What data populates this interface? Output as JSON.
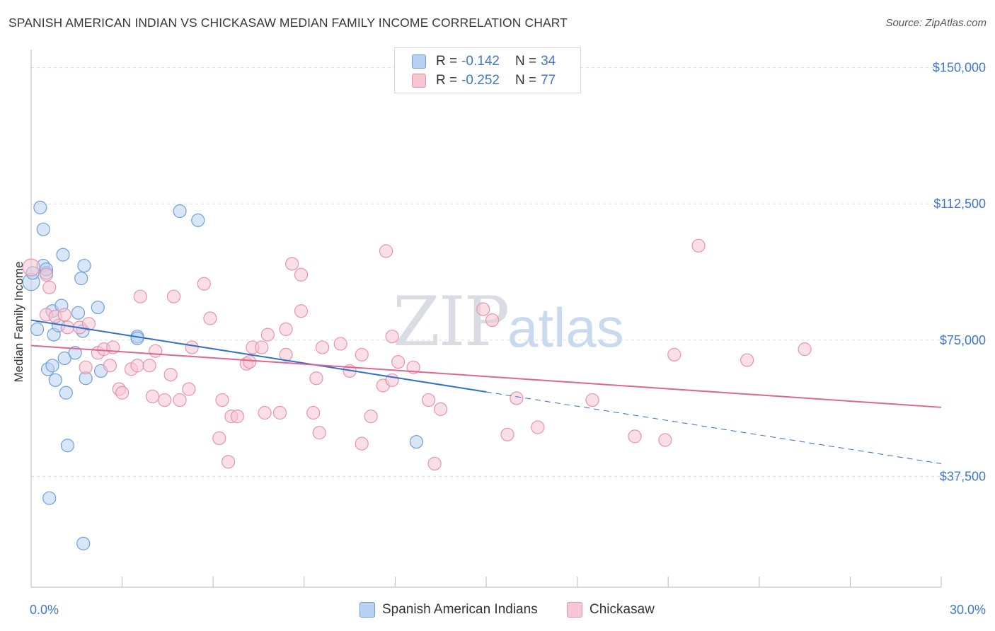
{
  "title": "SPANISH AMERICAN INDIAN VS CHICKASAW MEDIAN FAMILY INCOME CORRELATION CHART",
  "source": "Source: ZipAtlas.com",
  "watermark": {
    "zip": "ZIP",
    "atlas": "atlas"
  },
  "legend": {
    "series": [
      {
        "r_label": "R =",
        "r_value": "-0.142",
        "n_label": "N =",
        "n_value": "34"
      },
      {
        "r_label": "R =",
        "r_value": "-0.252",
        "n_label": "N =",
        "n_value": "77"
      }
    ]
  },
  "chart_data": {
    "type": "scatter",
    "title": "SPANISH AMERICAN INDIAN VS CHICKASAW MEDIAN FAMILY INCOME CORRELATION CHART",
    "xlabel": "",
    "ylabel": "Median Family Income",
    "xlim": [
      0,
      30
    ],
    "ylim": [
      7000,
      155000
    ],
    "x_tick_labels": [
      {
        "value": 0,
        "label": "0.0%"
      },
      {
        "value": 30,
        "label": "30.0%"
      }
    ],
    "x_minor_ticks": [
      0,
      3,
      6,
      9,
      12,
      15,
      18,
      21,
      24,
      27,
      30
    ],
    "y_ticks": [
      {
        "value": 150000,
        "label": "$150,000"
      },
      {
        "value": 112500,
        "label": "$112,500"
      },
      {
        "value": 75000,
        "label": "$75,000"
      },
      {
        "value": 37500,
        "label": "$37,500"
      }
    ],
    "grid": true,
    "series": [
      {
        "name": "Spanish American Indians",
        "fill": "#b8d1f3",
        "stroke": "#6f9fd8",
        "trend": {
          "x_start": 0,
          "y_start": 80500,
          "x_solid_end": 15,
          "x_end": 30,
          "y_end": 41000
        },
        "trend_color": "#2f6fcf",
        "points": [
          [
            0.0,
            91000
          ],
          [
            0.2,
            78000
          ],
          [
            0.3,
            111500
          ],
          [
            0.4,
            105500
          ],
          [
            0.4,
            95500
          ],
          [
            0.5,
            93500
          ],
          [
            0.5,
            94500
          ],
          [
            0.55,
            67000
          ],
          [
            0.6,
            31500
          ],
          [
            0.7,
            68000
          ],
          [
            0.7,
            83000
          ],
          [
            0.75,
            76500
          ],
          [
            0.8,
            64000
          ],
          [
            0.9,
            79000
          ],
          [
            1.0,
            84500
          ],
          [
            1.05,
            98500
          ],
          [
            1.1,
            70000
          ],
          [
            1.15,
            60500
          ],
          [
            1.2,
            46000
          ],
          [
            1.45,
            71500
          ],
          [
            1.55,
            82500
          ],
          [
            1.65,
            92000
          ],
          [
            1.7,
            77500
          ],
          [
            1.72,
            19000
          ],
          [
            1.75,
            95500
          ],
          [
            1.8,
            64500
          ],
          [
            2.2,
            84000
          ],
          [
            2.3,
            66500
          ],
          [
            3.5,
            76000
          ],
          [
            3.5,
            75500
          ],
          [
            4.9,
            110500
          ],
          [
            5.5,
            108000
          ],
          [
            12.7,
            47000
          ],
          [
            0.05,
            93500
          ]
        ]
      },
      {
        "name": "Chickasaw",
        "fill": "#f7c5d4",
        "stroke": "#e893ae",
        "trend": {
          "x_start": 0,
          "y_start": 73500,
          "x_end": 30,
          "y_end": 56500
        },
        "trend_color": "#e06690",
        "points": [
          [
            0.0,
            95000
          ],
          [
            0.5,
            93000
          ],
          [
            0.5,
            82000
          ],
          [
            0.6,
            89500
          ],
          [
            0.8,
            81500
          ],
          [
            1.1,
            82000
          ],
          [
            1.2,
            78500
          ],
          [
            1.6,
            78500
          ],
          [
            1.9,
            79500
          ],
          [
            2.2,
            71500
          ],
          [
            2.6,
            68000
          ],
          [
            2.4,
            72500
          ],
          [
            2.7,
            73000
          ],
          [
            1.8,
            67500
          ],
          [
            2.9,
            61500
          ],
          [
            3.0,
            60500
          ],
          [
            3.3,
            67000
          ],
          [
            3.5,
            68000
          ],
          [
            3.6,
            87000
          ],
          [
            3.9,
            68000
          ],
          [
            4.0,
            59500
          ],
          [
            4.1,
            72000
          ],
          [
            4.4,
            58500
          ],
          [
            4.6,
            65500
          ],
          [
            4.7,
            87000
          ],
          [
            4.9,
            58500
          ],
          [
            5.2,
            61500
          ],
          [
            5.3,
            73000
          ],
          [
            5.7,
            90500
          ],
          [
            5.9,
            81000
          ],
          [
            6.2,
            48000
          ],
          [
            6.3,
            58500
          ],
          [
            6.6,
            54000
          ],
          [
            6.5,
            41500
          ],
          [
            6.8,
            54000
          ],
          [
            7.1,
            68500
          ],
          [
            7.2,
            69000
          ],
          [
            7.3,
            73000
          ],
          [
            7.6,
            73000
          ],
          [
            7.7,
            55000
          ],
          [
            7.8,
            76500
          ],
          [
            8.2,
            55000
          ],
          [
            8.4,
            78000
          ],
          [
            8.4,
            71000
          ],
          [
            8.6,
            96000
          ],
          [
            8.9,
            83000
          ],
          [
            8.9,
            93000
          ],
          [
            9.3,
            55000
          ],
          [
            9.5,
            49500
          ],
          [
            9.4,
            64500
          ],
          [
            9.6,
            73000
          ],
          [
            10.2,
            74000
          ],
          [
            10.5,
            66500
          ],
          [
            10.9,
            71000
          ],
          [
            10.9,
            46500
          ],
          [
            11.2,
            54000
          ],
          [
            11.6,
            62500
          ],
          [
            11.9,
            64000
          ],
          [
            11.7,
            99500
          ],
          [
            11.9,
            76000
          ],
          [
            12.1,
            69000
          ],
          [
            12.6,
            67500
          ],
          [
            13.1,
            58500
          ],
          [
            13.5,
            56000
          ],
          [
            13.3,
            41000
          ],
          [
            14.9,
            83500
          ],
          [
            15.2,
            80500
          ],
          [
            15.7,
            49000
          ],
          [
            16.0,
            59000
          ],
          [
            16.7,
            51000
          ],
          [
            18.5,
            58500
          ],
          [
            19.9,
            48500
          ],
          [
            20.9,
            47500
          ],
          [
            21.2,
            71000
          ],
          [
            22.0,
            101000
          ],
          [
            23.6,
            69500
          ],
          [
            25.5,
            72500
          ]
        ]
      }
    ]
  }
}
